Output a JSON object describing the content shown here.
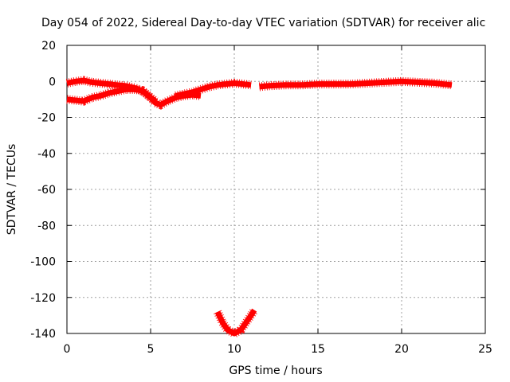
{
  "chart_data": {
    "type": "line",
    "title": "Day 054 of 2022, Sidereal Day-to-day VTEC variation (SDTVAR) for receiver alic",
    "xlabel": "GPS time / hours",
    "ylabel": "SDTVAR / TECUs",
    "xlim": [
      0,
      25
    ],
    "ylim": [
      -140,
      20
    ],
    "x_ticks": [
      0,
      5,
      10,
      15,
      20,
      25
    ],
    "y_ticks": [
      20,
      0,
      -20,
      -40,
      -60,
      -80,
      -100,
      -120,
      -140
    ],
    "grid": true,
    "legend": "none",
    "series_color": "#ff0000",
    "series": [
      {
        "x": [
          0,
          0.5,
          1,
          1.5,
          2,
          2.5,
          3,
          3.5,
          4,
          4.5,
          5,
          5.3,
          5.6,
          6,
          6.5,
          7,
          7.5,
          8
        ],
        "y": [
          -10,
          -10.5,
          -11,
          -9,
          -8,
          -6.5,
          -5.5,
          -4.5,
          -4.5,
          -5,
          -9,
          -12,
          -13,
          -11,
          -9,
          -8,
          -7.5,
          -8
        ]
      },
      {
        "x": [
          0,
          0.5,
          1,
          1.5,
          2,
          2.5,
          3,
          3.5,
          4,
          4.3,
          4.6,
          5,
          5.3
        ],
        "y": [
          -1,
          0,
          0.5,
          -0.5,
          -1,
          -1.5,
          -2,
          -2.5,
          -3.5,
          -4.5,
          -6,
          -9,
          -11
        ]
      },
      {
        "x": [
          6.5,
          7,
          7.5,
          8,
          8.5,
          9,
          9.5,
          10,
          10.5,
          11
        ],
        "y": [
          -8,
          -7,
          -6,
          -4.5,
          -3,
          -2,
          -1.5,
          -1,
          -1.5,
          -2
        ]
      },
      {
        "x": [
          11.5,
          12,
          13,
          14,
          15,
          16,
          17,
          18,
          19,
          20,
          21,
          22,
          23
        ],
        "y": [
          -3,
          -2.5,
          -2,
          -2,
          -1.5,
          -1.5,
          -1.5,
          -1,
          -0.5,
          0,
          -0.5,
          -1,
          -2
        ]
      },
      {
        "x": [
          9,
          9.3,
          9.6,
          10,
          10.4,
          10.7,
          11,
          11.2
        ],
        "y": [
          -128,
          -134,
          -138,
          -140,
          -138,
          -134,
          -130,
          -127
        ]
      }
    ]
  }
}
